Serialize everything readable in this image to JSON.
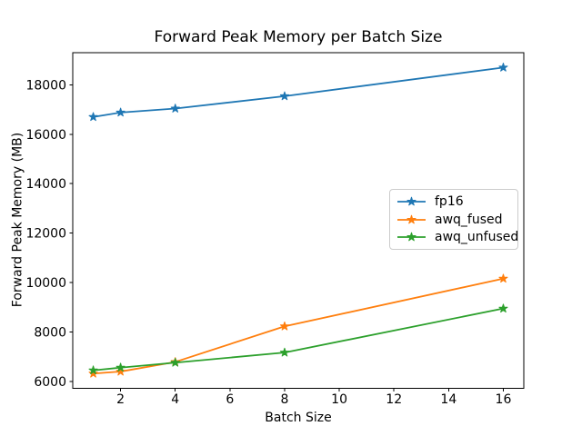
{
  "figure": {
    "background": "#ffffff",
    "frame_color": "#000000"
  },
  "chart_data": {
    "type": "line",
    "title": "Forward Peak Memory per Batch Size",
    "xlabel": "Batch Size",
    "ylabel": "Forward Peak Memory (MB)",
    "x": [
      1,
      2,
      4,
      8,
      16
    ],
    "series": [
      {
        "name": "fp16",
        "color": "#1f77b4",
        "marker": "star",
        "values": [
          16700,
          16880,
          17040,
          17540,
          18700
        ]
      },
      {
        "name": "awq_fused",
        "color": "#ff7f0e",
        "marker": "star",
        "values": [
          6320,
          6400,
          6790,
          8230,
          10160
        ]
      },
      {
        "name": "awq_unfused",
        "color": "#2ca02c",
        "marker": "star",
        "values": [
          6450,
          6560,
          6760,
          7170,
          8950
        ]
      }
    ],
    "xticks": [
      2,
      4,
      6,
      8,
      10,
      12,
      14,
      16
    ],
    "yticks": [
      6000,
      8000,
      10000,
      12000,
      14000,
      16000,
      18000
    ],
    "xlim": [
      0.25,
      16.75
    ],
    "ylim": [
      5730,
      19300
    ],
    "grid": false,
    "legend": {
      "position": "center-right"
    }
  }
}
